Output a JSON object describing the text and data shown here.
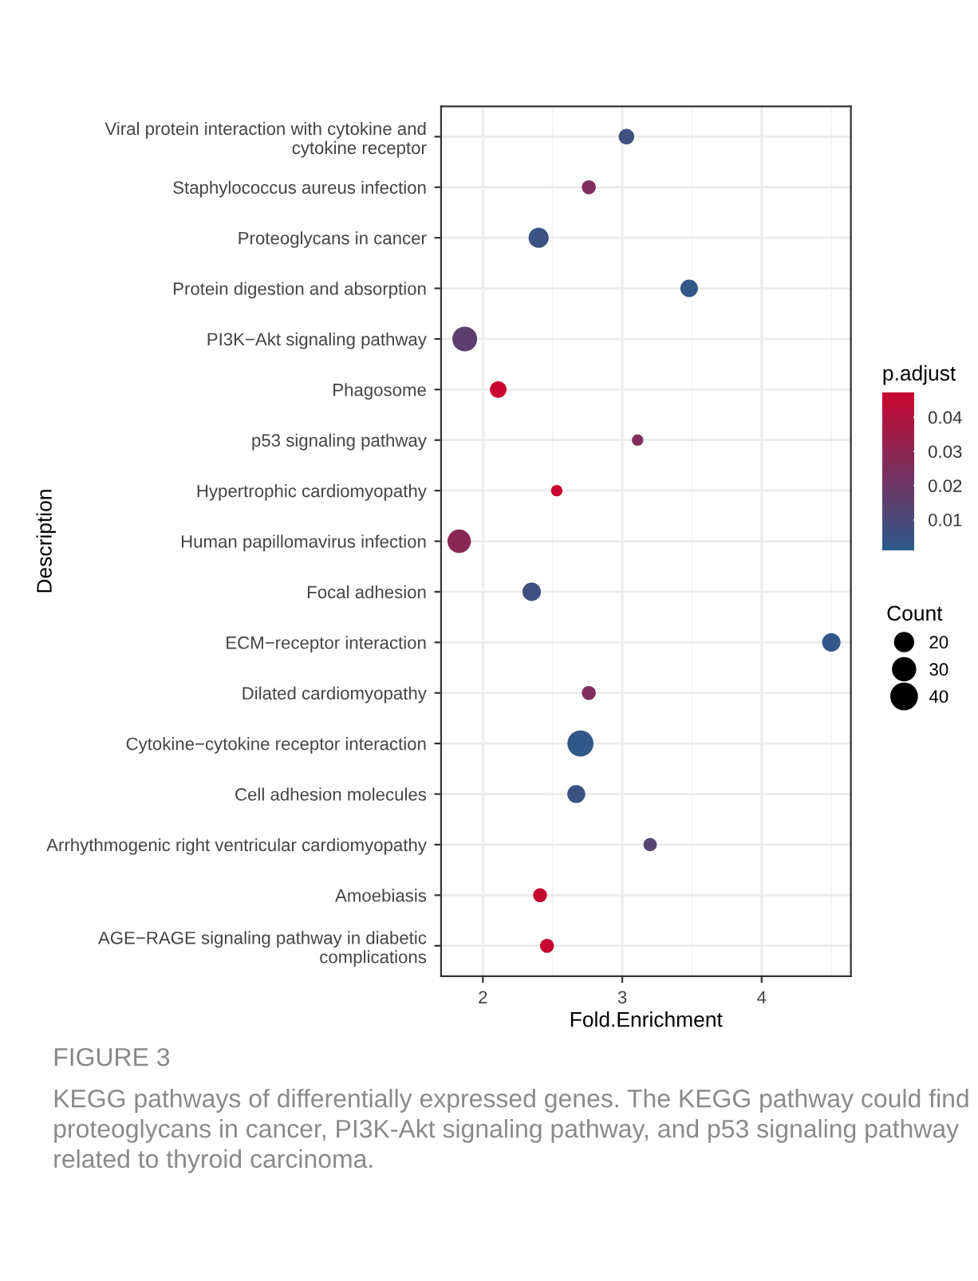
{
  "chart_data": {
    "type": "bubble",
    "orientation": "horizontal",
    "categories": [
      "Viral protein interaction with cytokine and\ncytokine receptor",
      "Staphylococcus aureus infection",
      "Proteoglycans in cancer",
      "Protein digestion and absorption",
      "PI3K−Akt signaling pathway",
      "Phagosome",
      "p53 signaling pathway",
      "Hypertrophic cardiomyopathy",
      "Human papillomavirus infection",
      "Focal adhesion",
      "ECM−receptor interaction",
      "Dilated cardiomyopathy",
      "Cytokine−cytokine receptor interaction",
      "Cell adhesion molecules",
      "Arrhythmogenic right ventricular cardiomyopathy",
      "Amoebiasis",
      "AGE−RAGE signaling pathway in diabetic\ncomplications"
    ],
    "values": [
      3.03,
      2.76,
      2.4,
      3.48,
      1.87,
      2.11,
      3.11,
      2.53,
      1.83,
      2.35,
      4.5,
      2.76,
      2.7,
      2.67,
      3.2,
      2.41,
      2.46
    ],
    "sizes": [
      15,
      12,
      25,
      19,
      38,
      17,
      8,
      8,
      34,
      21,
      21,
      12,
      42,
      20,
      11,
      12,
      12
    ],
    "size_legend": [
      20,
      30,
      40
    ],
    "cvalues": [
      0.006,
      0.025,
      0.005,
      0.002,
      0.015,
      0.047,
      0.025,
      0.047,
      0.028,
      0.006,
      0.002,
      0.025,
      0.002,
      0.005,
      0.012,
      0.046,
      0.046
    ],
    "clim": [
      0.0005,
      0.047
    ],
    "cticks": [
      0.01,
      0.02,
      0.03,
      0.04
    ],
    "xlim": [
      1.7,
      4.64
    ],
    "xticks": [
      2,
      3,
      4,
      {
        "value": 2.5,
        "label": null
      },
      {
        "value": 3.5,
        "label": null
      },
      {
        "value": 4.5,
        "label": null
      }
    ],
    "xlabel": "Fold.Enrichment",
    "ylabel": "Description",
    "clabel": "p.adjust",
    "legend_title": "Count",
    "grid": true,
    "annotations": [
      "FIGURE 3",
      "KEGG pathways of differentially expressed genes. The KEGG pathway could find proteoglycans in cancer, PI3K-Akt signaling pathway, and p53 signaling pathway related to thyroid carcinoma."
    ]
  }
}
